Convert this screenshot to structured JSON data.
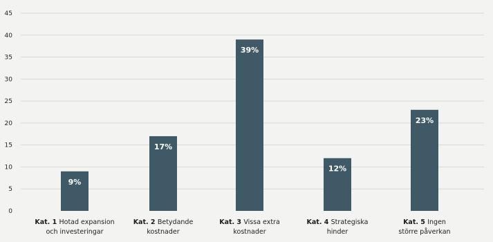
{
  "chart_data": {
    "type": "bar",
    "categories": [
      {
        "prefix": "Kat. 1",
        "line1": "Hotad expansion",
        "line2": "och investeringar"
      },
      {
        "prefix": "Kat. 2",
        "line1": "Betydande",
        "line2": "kostnader"
      },
      {
        "prefix": "Kat. 3",
        "line1": "Vissa extra",
        "line2": "kostnader"
      },
      {
        "prefix": "Kat. 4",
        "line1": "Strategiska",
        "line2": "hinder"
      },
      {
        "prefix": "Kat. 5",
        "line1": "Ingen",
        "line2": "större påverkan"
      }
    ],
    "values": [
      9,
      17,
      39,
      12,
      23
    ],
    "data_labels": [
      "9%",
      "17%",
      "39%",
      "12%",
      "23%"
    ],
    "ylim": [
      0,
      45
    ],
    "yticks": [
      0,
      5,
      10,
      15,
      20,
      25,
      30,
      35,
      40,
      45
    ],
    "grid": true,
    "bar_color": "#3f5a66"
  }
}
